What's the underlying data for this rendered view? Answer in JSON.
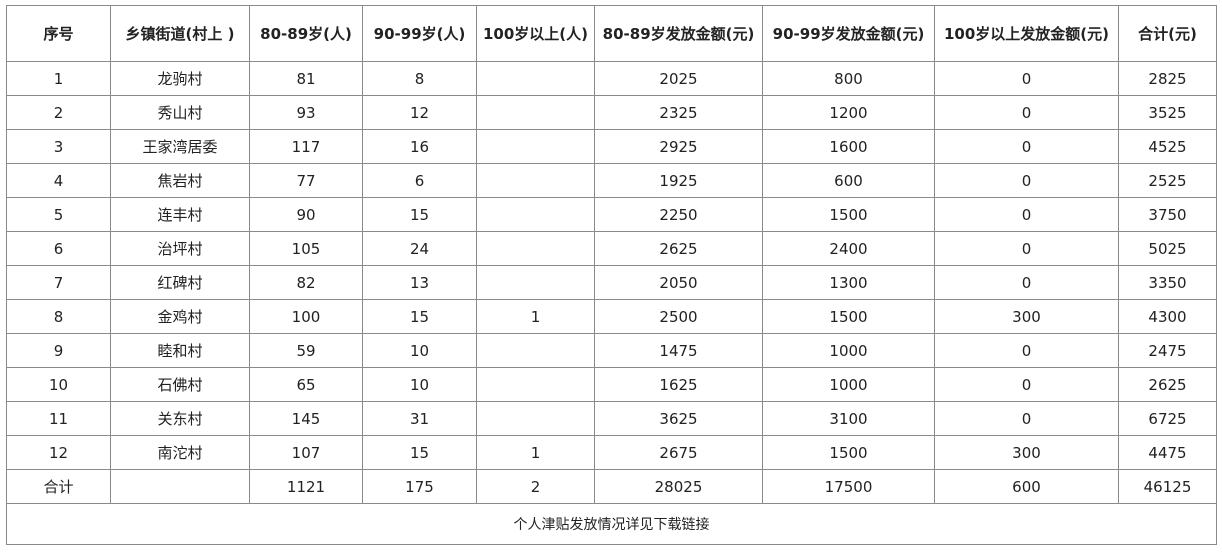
{
  "headers": [
    "序号",
    "乡镇街道(村上 )",
    "80-89岁(人)",
    "90-99岁(人)",
    "100岁以上(人)",
    "80-89岁发放金额(元)",
    "90-99岁发放金额(元)",
    "100岁以上发放金额(元)",
    "合计(元)"
  ],
  "rows": [
    [
      "1",
      "龙驹村",
      "81",
      "8",
      "",
      "2025",
      "800",
      "0",
      "2825"
    ],
    [
      "2",
      "秀山村",
      "93",
      "12",
      "",
      "2325",
      "1200",
      "0",
      "3525"
    ],
    [
      "3",
      "王家湾居委",
      "117",
      "16",
      "",
      "2925",
      "1600",
      "0",
      "4525"
    ],
    [
      "4",
      "焦岩村",
      "77",
      "6",
      "",
      "1925",
      "600",
      "0",
      "2525"
    ],
    [
      "5",
      "连丰村",
      "90",
      "15",
      "",
      "2250",
      "1500",
      "0",
      "3750"
    ],
    [
      "6",
      "治坪村",
      "105",
      "24",
      "",
      "2625",
      "2400",
      "0",
      "5025"
    ],
    [
      "7",
      "红碑村",
      "82",
      "13",
      "",
      "2050",
      "1300",
      "0",
      "3350"
    ],
    [
      "8",
      "金鸡村",
      "100",
      "15",
      "1",
      "2500",
      "1500",
      "300",
      "4300"
    ],
    [
      "9",
      "睦和村",
      "59",
      "10",
      "",
      "1475",
      "1000",
      "0",
      "2475"
    ],
    [
      "10",
      "石佛村",
      "65",
      "10",
      "",
      "1625",
      "1000",
      "0",
      "2625"
    ],
    [
      "11",
      "关东村",
      "145",
      "31",
      "",
      "3625",
      "3100",
      "0",
      "6725"
    ],
    [
      "12",
      "南沱村",
      "107",
      "15",
      "1",
      "2675",
      "1500",
      "300",
      "4475"
    ]
  ],
  "total": [
    "合计",
    "",
    "1121",
    "175",
    "2",
    "28025",
    "17500",
    "600",
    "46125"
  ],
  "note": "个人津贴发放情况详见下载链接"
}
